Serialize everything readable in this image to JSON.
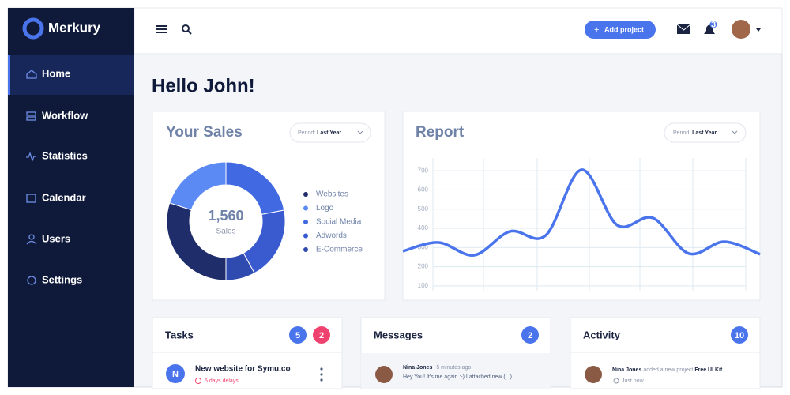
{
  "brand": "Merkury",
  "nav": [
    "Home",
    "Workflow",
    "Statistics",
    "Calendar",
    "Users",
    "Settings"
  ],
  "topbar": {
    "button": "Add project",
    "notifications": 3
  },
  "greeting": "Hello John!",
  "chart_data": [
    {
      "type": "pie",
      "title": "Your Sales",
      "period_label": "Period:",
      "period": "Last Year",
      "center_value": "1,560",
      "center_caption": "Sales",
      "categories": [
        "Websites",
        "Logo",
        "Social Media",
        "Adwords",
        "E-Commerce"
      ],
      "values": [
        30,
        20,
        22,
        20,
        8
      ],
      "colors": [
        "#1f2d6b",
        "#5b8af5",
        "#4169e1",
        "#3a5bd0",
        "#2f4bb0"
      ]
    },
    {
      "type": "line",
      "title": "Report",
      "period_label": "Period:",
      "period": "Last Year",
      "values": [
        281,
        326,
        260,
        384,
        363,
        705,
        417,
        454,
        269,
        330,
        265
      ],
      "color": "#4a74ec",
      "ylim": [
        50,
        750
      ],
      "yticks": [
        100,
        200,
        300,
        400,
        500,
        600,
        700
      ],
      "grid": true
    }
  ],
  "tasks": {
    "title": "Tasks",
    "badges": [
      5,
      2
    ],
    "items": [
      {
        "initial": "N",
        "title": "New website for Symu.co",
        "status": "5 days delays"
      }
    ]
  },
  "messages": {
    "title": "Messages",
    "badge": 2,
    "items": [
      {
        "name": "Nina Jones",
        "time": "5 minutes ago",
        "text": "Hey You! It's me again :-) I attached new (...)"
      }
    ]
  },
  "activity": {
    "title": "Activity",
    "badge": 10,
    "items": [
      {
        "name": "Nina Jones",
        "action": "added a new project",
        "object": "Free UI Kit",
        "time": "Just now"
      }
    ]
  }
}
